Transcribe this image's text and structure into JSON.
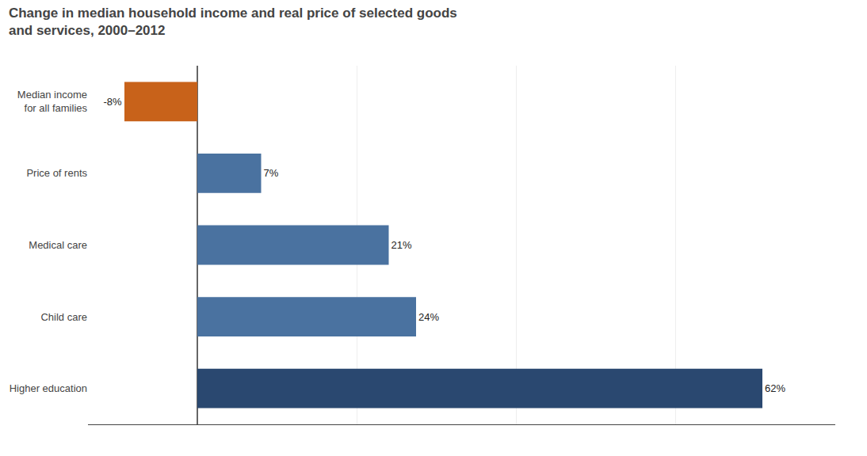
{
  "chart_data": {
    "type": "bar",
    "orientation": "horizontal",
    "title": "Change in median household income and real price of selected goods\nand services, 2000–2012",
    "categories": [
      "Median income\nfor all families",
      "Price of rents",
      "Medical care",
      "Child care",
      "Higher education"
    ],
    "values": [
      -8,
      7,
      21,
      24,
      62
    ],
    "value_labels": [
      "-8%",
      "7%",
      "21%",
      "24%",
      "62%"
    ],
    "colors": [
      "#c8621a",
      "#4a72a0",
      "#4a72a0",
      "#4a72a0",
      "#2a4870"
    ],
    "xlim": [
      -12,
      70
    ],
    "xticks": [
      0,
      17.5,
      35,
      52.5,
      70
    ],
    "grid": true,
    "data_labels": true,
    "tick_labels": "y"
  }
}
